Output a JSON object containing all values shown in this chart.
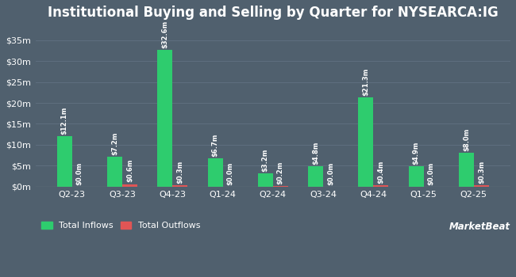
{
  "title": "Institutional Buying and Selling by Quarter for NYSEARCA:IG",
  "categories": [
    "Q2-23",
    "Q3-23",
    "Q4-23",
    "Q1-24",
    "Q2-24",
    "Q3-24",
    "Q4-24",
    "Q1-25",
    "Q2-25"
  ],
  "inflows": [
    12.1,
    7.2,
    32.6,
    6.7,
    3.2,
    4.8,
    21.3,
    4.9,
    8.0
  ],
  "outflows": [
    0.0,
    0.6,
    0.3,
    0.0,
    0.2,
    0.0,
    0.4,
    0.0,
    0.3
  ],
  "inflow_labels": [
    "$12.1m",
    "$7.2m",
    "$32.6m",
    "$6.7m",
    "$3.2m",
    "$4.8m",
    "$21.3m",
    "$4.9m",
    "$8.0m"
  ],
  "outflow_labels": [
    "$0.0m",
    "$0.6m",
    "$0.3m",
    "$0.0m",
    "$0.2m",
    "$0.0m",
    "$0.4m",
    "$0.0m",
    "$0.3m"
  ],
  "inflow_color": "#2ecc6e",
  "outflow_color": "#e05555",
  "background_color": "#50606e",
  "grid_color": "#5e6e7e",
  "text_color": "#ffffff",
  "bar_width": 0.3,
  "ylim": [
    0,
    38
  ],
  "yticks": [
    0,
    5,
    10,
    15,
    20,
    25,
    30,
    35
  ],
  "ytick_labels": [
    "$0m",
    "$5m",
    "$10m",
    "$15m",
    "$20m",
    "$25m",
    "$30m",
    "$35m"
  ],
  "legend_inflow": "Total Inflows",
  "legend_outflow": "Total Outflows",
  "title_fontsize": 12,
  "label_fontsize": 6.0,
  "tick_fontsize": 8,
  "legend_fontsize": 8
}
